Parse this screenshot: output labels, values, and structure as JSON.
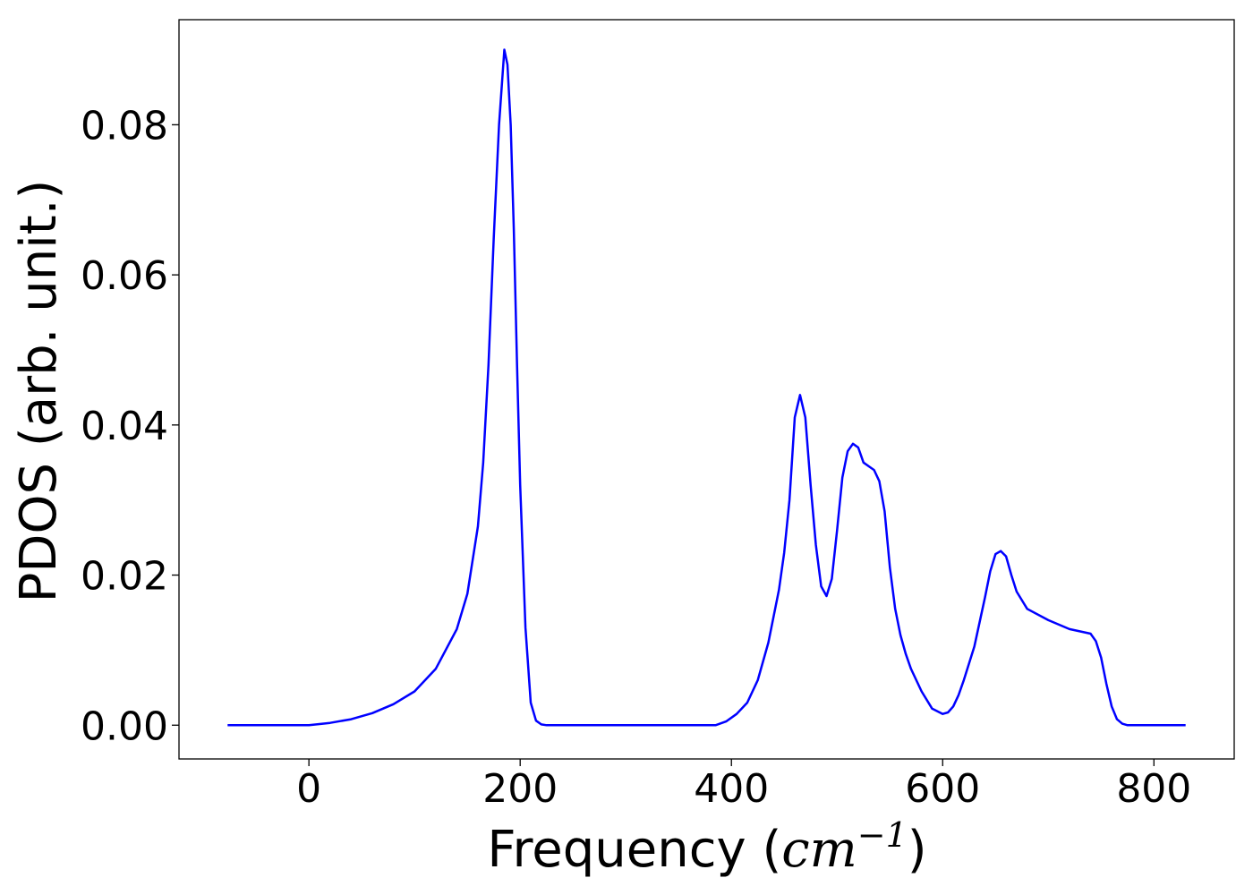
{
  "chart_data": {
    "type": "line",
    "xlabel_main": "Frequency (",
    "xlabel_unit": "cm",
    "xlabel_exp": "−1",
    "xlabel_close": ")",
    "ylabel": "PDOS (arb. unit.)",
    "xlim": [
      -123,
      876
    ],
    "ylim": [
      -0.0045,
      0.094
    ],
    "xticks": [
      0,
      200,
      400,
      600,
      800
    ],
    "xtick_labels": [
      "0",
      "200",
      "400",
      "600",
      "800"
    ],
    "yticks": [
      0.0,
      0.02,
      0.04,
      0.06,
      0.08
    ],
    "ytick_labels": [
      "0.00",
      "0.02",
      "0.04",
      "0.06",
      "0.08"
    ],
    "grid": false,
    "legend": "none",
    "series": [
      {
        "color": "#0000ff",
        "x": [
          -77,
          0,
          20,
          40,
          60,
          80,
          100,
          120,
          140,
          150,
          160,
          165,
          170,
          175,
          180,
          185,
          188,
          191,
          194,
          197,
          200,
          205,
          210,
          215,
          220,
          225,
          230,
          250,
          300,
          350,
          385,
          395,
          405,
          415,
          425,
          435,
          445,
          450,
          455,
          460,
          465,
          470,
          475,
          480,
          485,
          490,
          495,
          500,
          505,
          510,
          515,
          520,
          525,
          530,
          535,
          540,
          545,
          550,
          555,
          560,
          565,
          570,
          580,
          590,
          600,
          605,
          610,
          615,
          620,
          630,
          640,
          645,
          650,
          655,
          660,
          665,
          670,
          680,
          700,
          720,
          740,
          745,
          750,
          755,
          760,
          765,
          770,
          775,
          780,
          800,
          830
        ],
        "y": [
          0.0,
          0.0,
          0.0003,
          0.0008,
          0.0016,
          0.0028,
          0.0045,
          0.0075,
          0.0128,
          0.0175,
          0.0265,
          0.035,
          0.048,
          0.065,
          0.08,
          0.09,
          0.088,
          0.08,
          0.066,
          0.048,
          0.032,
          0.013,
          0.003,
          0.0006,
          0.0001,
          0.0,
          0.0,
          0.0,
          0.0,
          0.0,
          0.0,
          0.0005,
          0.0015,
          0.003,
          0.006,
          0.011,
          0.018,
          0.023,
          0.03,
          0.041,
          0.044,
          0.041,
          0.032,
          0.024,
          0.0185,
          0.0172,
          0.0195,
          0.026,
          0.033,
          0.0365,
          0.0375,
          0.037,
          0.035,
          0.0345,
          0.034,
          0.0325,
          0.0285,
          0.021,
          0.0155,
          0.012,
          0.0095,
          0.0075,
          0.0045,
          0.0022,
          0.0015,
          0.0017,
          0.0025,
          0.004,
          0.006,
          0.0105,
          0.017,
          0.0205,
          0.0228,
          0.0232,
          0.0225,
          0.02,
          0.0178,
          0.0155,
          0.014,
          0.0128,
          0.0122,
          0.0112,
          0.009,
          0.0055,
          0.0025,
          0.0008,
          0.0002,
          0.0,
          0.0,
          0.0,
          0.0
        ]
      }
    ]
  }
}
